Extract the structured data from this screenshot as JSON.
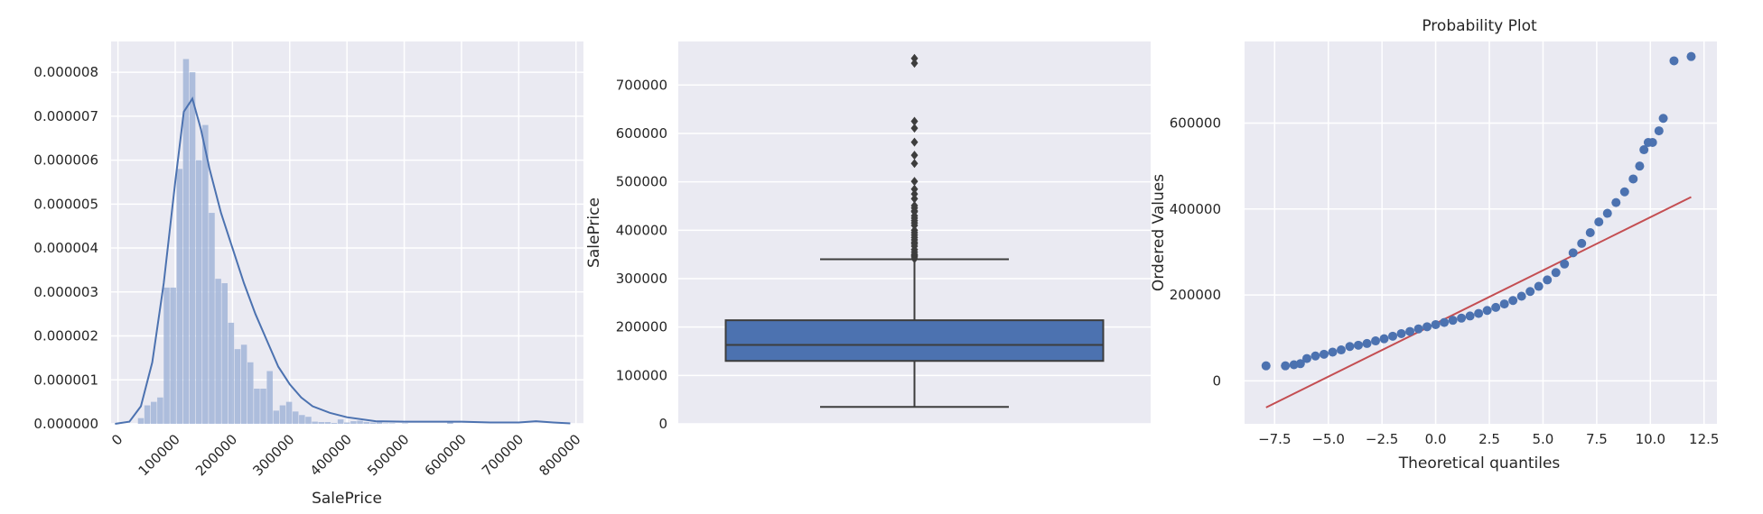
{
  "figure": {
    "background": "#ffffff",
    "axes_background": "#eaeaf2",
    "grid_color": "#ffffff",
    "text_color": "#262626"
  },
  "chart_data": [
    {
      "type": "bar",
      "subtype": "histogram_with_kde",
      "title": "",
      "xlabel": "SalePrice",
      "ylabel": "",
      "xlim": [
        -12000,
        813000
      ],
      "ylim": [
        0,
        8.7e-06
      ],
      "xticks": [
        0,
        100000,
        200000,
        300000,
        400000,
        500000,
        600000,
        700000,
        800000
      ],
      "xtick_labels": [
        "0",
        "100000",
        "200000",
        "300000",
        "400000",
        "500000",
        "600000",
        "700000",
        "800000"
      ],
      "xtick_rotation_deg": 45,
      "yticks": [
        0,
        1e-06,
        2e-06,
        3e-06,
        4e-06,
        5e-06,
        6e-06,
        7e-06,
        8e-06
      ],
      "ytick_labels": [
        "0.000000",
        "0.000001",
        "0.000002",
        "0.000003",
        "0.000004",
        "0.000005",
        "0.000006",
        "0.000007",
        "0.000008"
      ],
      "grid": true,
      "bar_color": "#a2b5d8",
      "line_color": "#4c72b0",
      "bins": {
        "start": 34900,
        "width": 11253,
        "densities": [
          1.3e-07,
          4.2e-07,
          5e-07,
          6e-07,
          3.1e-06,
          3.1e-06,
          5.8e-06,
          8.3e-06,
          8e-06,
          6e-06,
          6.8e-06,
          4.8e-06,
          3.3e-06,
          3.2e-06,
          2.3e-06,
          1.7e-06,
          1.8e-06,
          1.4e-06,
          8e-07,
          8e-07,
          1.2e-06,
          3e-07,
          4.2e-07,
          5e-07,
          2.8e-07,
          2e-07,
          1.6e-07,
          5e-08,
          4e-08,
          4e-08,
          2e-08,
          1e-07,
          3e-08,
          6e-08,
          7e-08,
          4e-08,
          3e-08,
          5e-08,
          1e-08,
          1e-08,
          0.0,
          1e-08,
          0.0,
          0.0,
          0.0,
          0.0,
          0.0,
          0.0,
          4e-08,
          0.0
        ]
      },
      "kde": {
        "x": [
          -5000,
          20000,
          40000,
          60000,
          80000,
          100000,
          115000,
          130000,
          145000,
          160000,
          180000,
          200000,
          220000,
          240000,
          260000,
          280000,
          300000,
          320000,
          340000,
          370000,
          400000,
          450000,
          500000,
          550000,
          600000,
          650000,
          700000,
          730000,
          760000,
          790000
        ],
        "y": [
          0.0,
          5e-08,
          4e-07,
          1.4e-06,
          3.2e-06,
          5.5e-06,
          7.1e-06,
          7.4e-06,
          6.7e-06,
          5.8e-06,
          4.8e-06,
          4e-06,
          3.2e-06,
          2.5e-06,
          1.9e-06,
          1.3e-06,
          9e-07,
          6e-07,
          4e-07,
          2.5e-07,
          1.5e-07,
          6e-08,
          5e-08,
          5e-08,
          5e-08,
          3e-08,
          3e-08,
          6e-08,
          3e-08,
          1e-08
        ]
      }
    },
    {
      "type": "box",
      "title": "",
      "xlabel": "",
      "ylabel": "SalePrice",
      "ylim": [
        0,
        790000
      ],
      "yticks": [
        0,
        100000,
        200000,
        300000,
        400000,
        500000,
        600000,
        700000
      ],
      "ytick_labels": [
        "0",
        "100000",
        "200000",
        "300000",
        "400000",
        "500000",
        "600000",
        "700000"
      ],
      "grid": true,
      "box_color": "#4c72b0",
      "line_color": "#3d3d3d",
      "stats": {
        "whisker_low": 34900,
        "q1": 129975,
        "median": 163000,
        "q3": 214000,
        "whisker_high": 340000
      },
      "outliers": [
        341000,
        345000,
        348000,
        350000,
        355000,
        360000,
        367000,
        372000,
        375000,
        380000,
        385000,
        390000,
        395000,
        400000,
        410000,
        415000,
        420000,
        425000,
        430000,
        438000,
        440000,
        446000,
        451000,
        465000,
        475000,
        485000,
        501000,
        538000,
        555000,
        582000,
        611000,
        625000,
        745000,
        755000
      ]
    },
    {
      "type": "scatter",
      "subtype": "probability_plot",
      "title": "Probability Plot",
      "xlabel": "Theoretical quantiles",
      "ylabel": "Ordered Values",
      "xlim": [
        -8.9,
        13.1
      ],
      "ylim": [
        -100000,
        790000
      ],
      "xticks": [
        -7.5,
        -5.0,
        -2.5,
        0.0,
        2.5,
        5.0,
        7.5,
        10.0,
        12.5
      ],
      "xtick_labels": [
        "−7.5",
        "−5.0",
        "−2.5",
        "0.0",
        "2.5",
        "5.0",
        "7.5",
        "10.0",
        "12.5"
      ],
      "yticks": [
        0,
        200000,
        400000,
        600000
      ],
      "ytick_labels": [
        "0",
        "200000",
        "400000",
        "600000"
      ],
      "grid": true,
      "point_color": "#4c72b0",
      "line_color": "#c44e52",
      "fit_line": {
        "x": [
          -7.9,
          11.9
        ],
        "y": [
          -62000,
          428000
        ]
      },
      "points": {
        "x": [
          -7.9,
          -7.0,
          -6.6,
          -6.3,
          -6.0,
          -5.6,
          -5.2,
          -4.8,
          -4.4,
          -4.0,
          -3.6,
          -3.2,
          -2.8,
          -2.4,
          -2.0,
          -1.6,
          -1.2,
          -0.8,
          -0.4,
          0.0,
          0.4,
          0.8,
          1.2,
          1.6,
          2.0,
          2.4,
          2.8,
          3.2,
          3.6,
          4.0,
          4.4,
          4.8,
          5.2,
          5.6,
          6.0,
          6.4,
          6.8,
          7.2,
          7.6,
          8.0,
          8.4,
          8.8,
          9.2,
          9.5,
          9.7,
          9.9,
          10.1,
          10.4,
          10.6,
          11.1,
          11.9
        ],
        "y": [
          35000,
          35000,
          37500,
          40000,
          52000,
          58000,
          62000,
          67000,
          72000,
          80000,
          83000,
          87000,
          93000,
          98000,
          104000,
          110000,
          115000,
          121000,
          126000,
          131000,
          136000,
          141000,
          146000,
          151000,
          157000,
          164000,
          171000,
          179000,
          187000,
          197000,
          208000,
          220000,
          235000,
          252000,
          272000,
          298000,
          320000,
          345000,
          370000,
          390000,
          415000,
          440000,
          470000,
          500000,
          538000,
          555000,
          555000,
          582000,
          611000,
          745000,
          755000
        ]
      }
    }
  ]
}
